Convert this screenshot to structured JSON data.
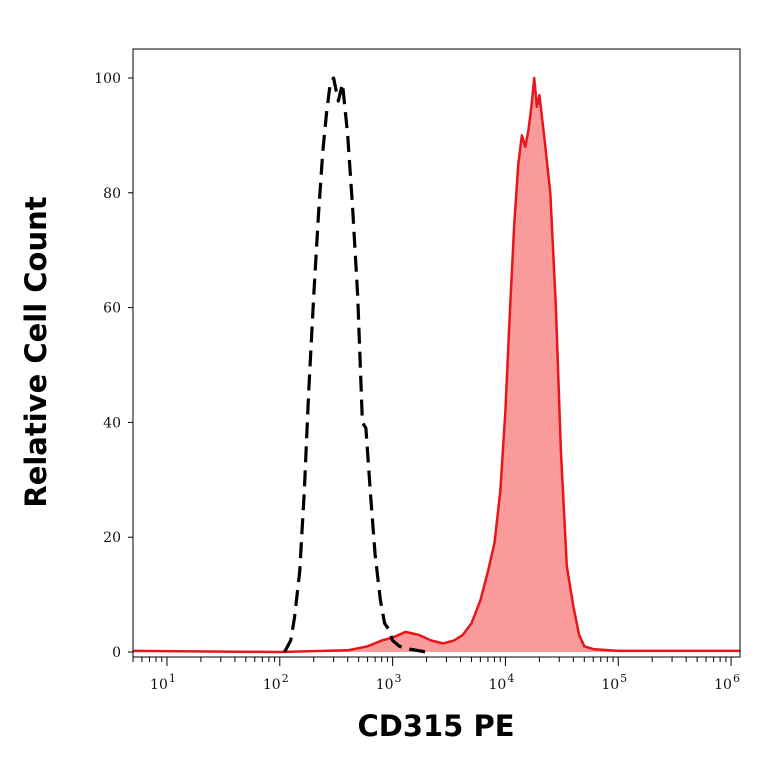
{
  "chart_data": {
    "type": "area",
    "xlabel": "CD315 PE",
    "ylabel": "Relative Cell Count",
    "x_scale": "log",
    "xlim": [
      5,
      1200000
    ],
    "ylim": [
      0,
      100
    ],
    "grid": false,
    "y_ticks": [
      "0",
      "20",
      "40",
      "60",
      "80",
      "100"
    ],
    "x_ticks": [
      {
        "value": 10,
        "base": "10",
        "exp": "1"
      },
      {
        "value": 100,
        "base": "10",
        "exp": "2"
      },
      {
        "value": 1000,
        "base": "10",
        "exp": "3"
      },
      {
        "value": 10000,
        "base": "10",
        "exp": "4"
      },
      {
        "value": 100000,
        "base": "10",
        "exp": "5"
      },
      {
        "value": 1000000,
        "base": "10",
        "exp": "6"
      }
    ],
    "series": [
      {
        "style": "dashed",
        "color": "#000000",
        "points": [
          [
            110,
            0
          ],
          [
            125,
            2
          ],
          [
            135,
            6
          ],
          [
            150,
            14
          ],
          [
            165,
            28
          ],
          [
            180,
            45
          ],
          [
            200,
            62
          ],
          [
            220,
            76
          ],
          [
            240,
            87
          ],
          [
            260,
            94
          ],
          [
            280,
            99
          ],
          [
            300,
            100
          ],
          [
            330,
            96
          ],
          [
            360,
            99
          ],
          [
            400,
            90
          ],
          [
            440,
            78
          ],
          [
            490,
            62
          ],
          [
            540,
            40
          ],
          [
            580,
            39
          ],
          [
            640,
            27
          ],
          [
            700,
            17
          ],
          [
            780,
            9
          ],
          [
            850,
            5
          ],
          [
            920,
            4
          ],
          [
            1000,
            2
          ],
          [
            1150,
            1
          ],
          [
            1400,
            0.5
          ],
          [
            2000,
            0
          ]
        ]
      },
      {
        "style": "filled",
        "color": "#e8161b",
        "fill": "#f99b9b",
        "points": [
          [
            5,
            0.2
          ],
          [
            100,
            0
          ],
          [
            400,
            0.3
          ],
          [
            600,
            1
          ],
          [
            800,
            2
          ],
          [
            1000,
            2.5
          ],
          [
            1300,
            3.5
          ],
          [
            1700,
            3
          ],
          [
            2200,
            2
          ],
          [
            2800,
            1.5
          ],
          [
            3500,
            2
          ],
          [
            4200,
            3
          ],
          [
            5000,
            5
          ],
          [
            6000,
            9
          ],
          [
            7000,
            14
          ],
          [
            8000,
            19
          ],
          [
            9000,
            28
          ],
          [
            10000,
            42
          ],
          [
            11000,
            60
          ],
          [
            12000,
            75
          ],
          [
            13000,
            85
          ],
          [
            14000,
            90
          ],
          [
            15000,
            88
          ],
          [
            16000,
            91
          ],
          [
            17000,
            95
          ],
          [
            18000,
            100
          ],
          [
            19000,
            95
          ],
          [
            20000,
            97
          ],
          [
            22000,
            90
          ],
          [
            25000,
            80
          ],
          [
            28000,
            60
          ],
          [
            31000,
            35
          ],
          [
            35000,
            15
          ],
          [
            40000,
            8
          ],
          [
            45000,
            3
          ],
          [
            50000,
            1
          ],
          [
            60000,
            0.5
          ],
          [
            100000,
            0.2
          ],
          [
            1200000,
            0.2
          ]
        ]
      }
    ]
  }
}
